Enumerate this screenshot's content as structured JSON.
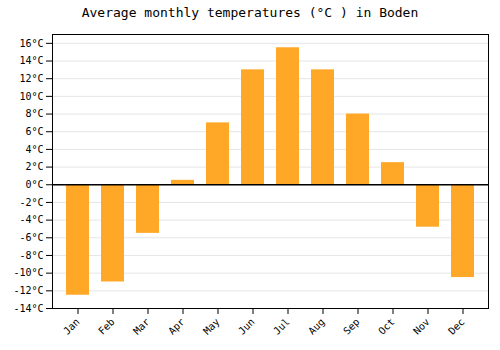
{
  "chart_data": {
    "type": "bar",
    "title": "Average monthly temperatures (°C ) in Boden",
    "categories": [
      "Jan",
      "Feb",
      "Mar",
      "Apr",
      "May",
      "Jun",
      "Jul",
      "Aug",
      "Sep",
      "Oct",
      "Nov",
      "Dec"
    ],
    "values": [
      -12.5,
      -11.0,
      -5.5,
      0.5,
      7.0,
      13.0,
      15.5,
      13.0,
      8.0,
      2.5,
      -4.8,
      -10.5
    ],
    "color": "#FFA726",
    "ylim": [
      -14,
      17
    ],
    "yticks": [
      {
        "value": -14,
        "label": "-14°C"
      },
      {
        "value": -12,
        "label": "-12°C"
      },
      {
        "value": -10,
        "label": "-10°C"
      },
      {
        "value": -8,
        "label": "-8°C"
      },
      {
        "value": -6,
        "label": "-6°C"
      },
      {
        "value": -4,
        "label": "-4°C"
      },
      {
        "value": -2,
        "label": "-2°C"
      },
      {
        "value": 0,
        "label": "0°C"
      },
      {
        "value": 2,
        "label": "2°C"
      },
      {
        "value": 4,
        "label": "4°C"
      },
      {
        "value": 6,
        "label": "6°C"
      },
      {
        "value": 8,
        "label": "8°C"
      },
      {
        "value": 10,
        "label": "10°C"
      },
      {
        "value": 12,
        "label": "12°C"
      },
      {
        "value": 14,
        "label": "14°C"
      },
      {
        "value": 16,
        "label": "16°C"
      }
    ],
    "grid": true
  }
}
